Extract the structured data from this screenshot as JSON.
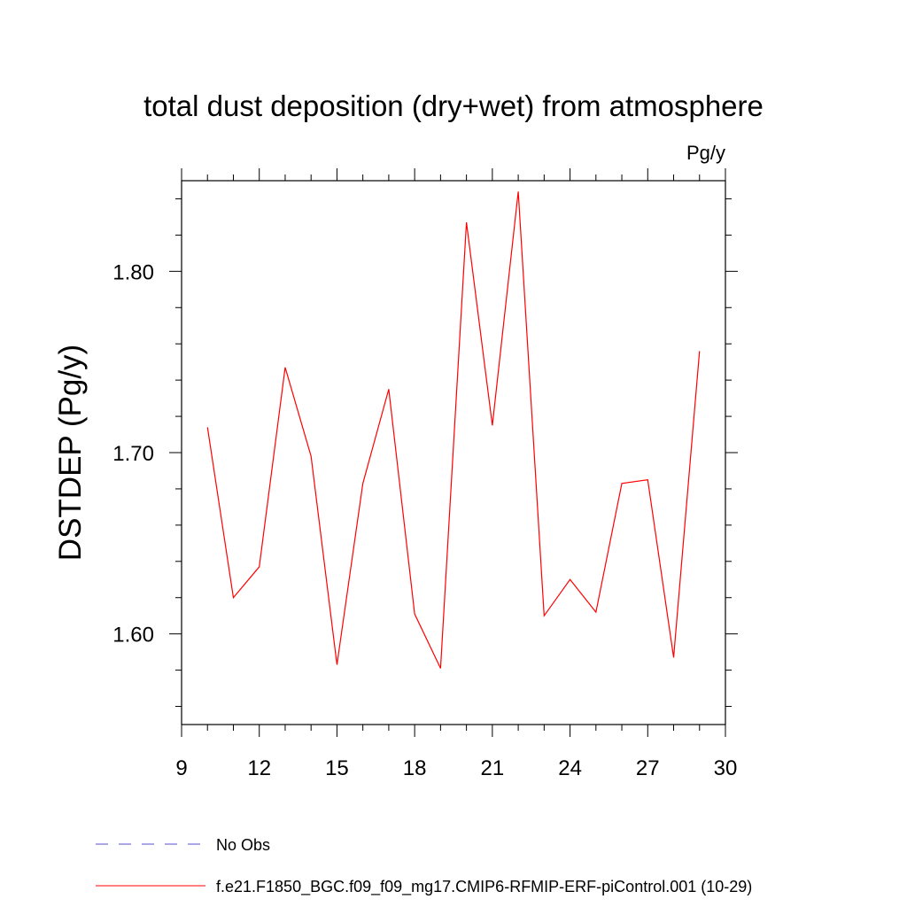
{
  "chart_data": {
    "type": "line",
    "title": "total dust deposition (dry+wet) from atmosphere",
    "units_label": "Pg/y",
    "ylabel": "DSTDEP  (Pg/y)",
    "xlabel": "",
    "xlim": [
      9,
      30
    ],
    "ylim": [
      1.55,
      1.85
    ],
    "x_ticks": [
      9,
      12,
      15,
      18,
      21,
      24,
      27,
      30
    ],
    "x_minor_step": 1,
    "y_ticks": [
      1.6,
      1.7,
      1.8
    ],
    "y_tick_labels": [
      "1.60",
      "1.70",
      "1.80"
    ],
    "y_minor_step": 0.02,
    "grid": false,
    "series": [
      {
        "name": "f.e21.F1850_BGC.f09_f09_mg17.CMIP6-RFMIP-ERF-piControl.001 (10-29)",
        "color": "#ff0000",
        "style": "solid",
        "x": [
          10,
          11,
          12,
          13,
          14,
          15,
          16,
          17,
          18,
          19,
          20,
          21,
          22,
          23,
          24,
          25,
          26,
          27,
          28,
          29
        ],
        "values": [
          1.714,
          1.62,
          1.637,
          1.747,
          1.698,
          1.583,
          1.683,
          1.735,
          1.611,
          1.581,
          1.827,
          1.715,
          1.844,
          1.61,
          1.63,
          1.612,
          1.683,
          1.685,
          1.587,
          1.756
        ]
      }
    ],
    "legend": {
      "placement": "bottom-left",
      "entries": [
        {
          "label": "No Obs",
          "color": "#5a4fcf",
          "style": "dashed"
        },
        {
          "label": "f.e21.F1850_BGC.f09_f09_mg17.CMIP6-RFMIP-ERF-piControl.001 (10-29)",
          "color": "#ff0000",
          "style": "solid"
        }
      ]
    }
  }
}
